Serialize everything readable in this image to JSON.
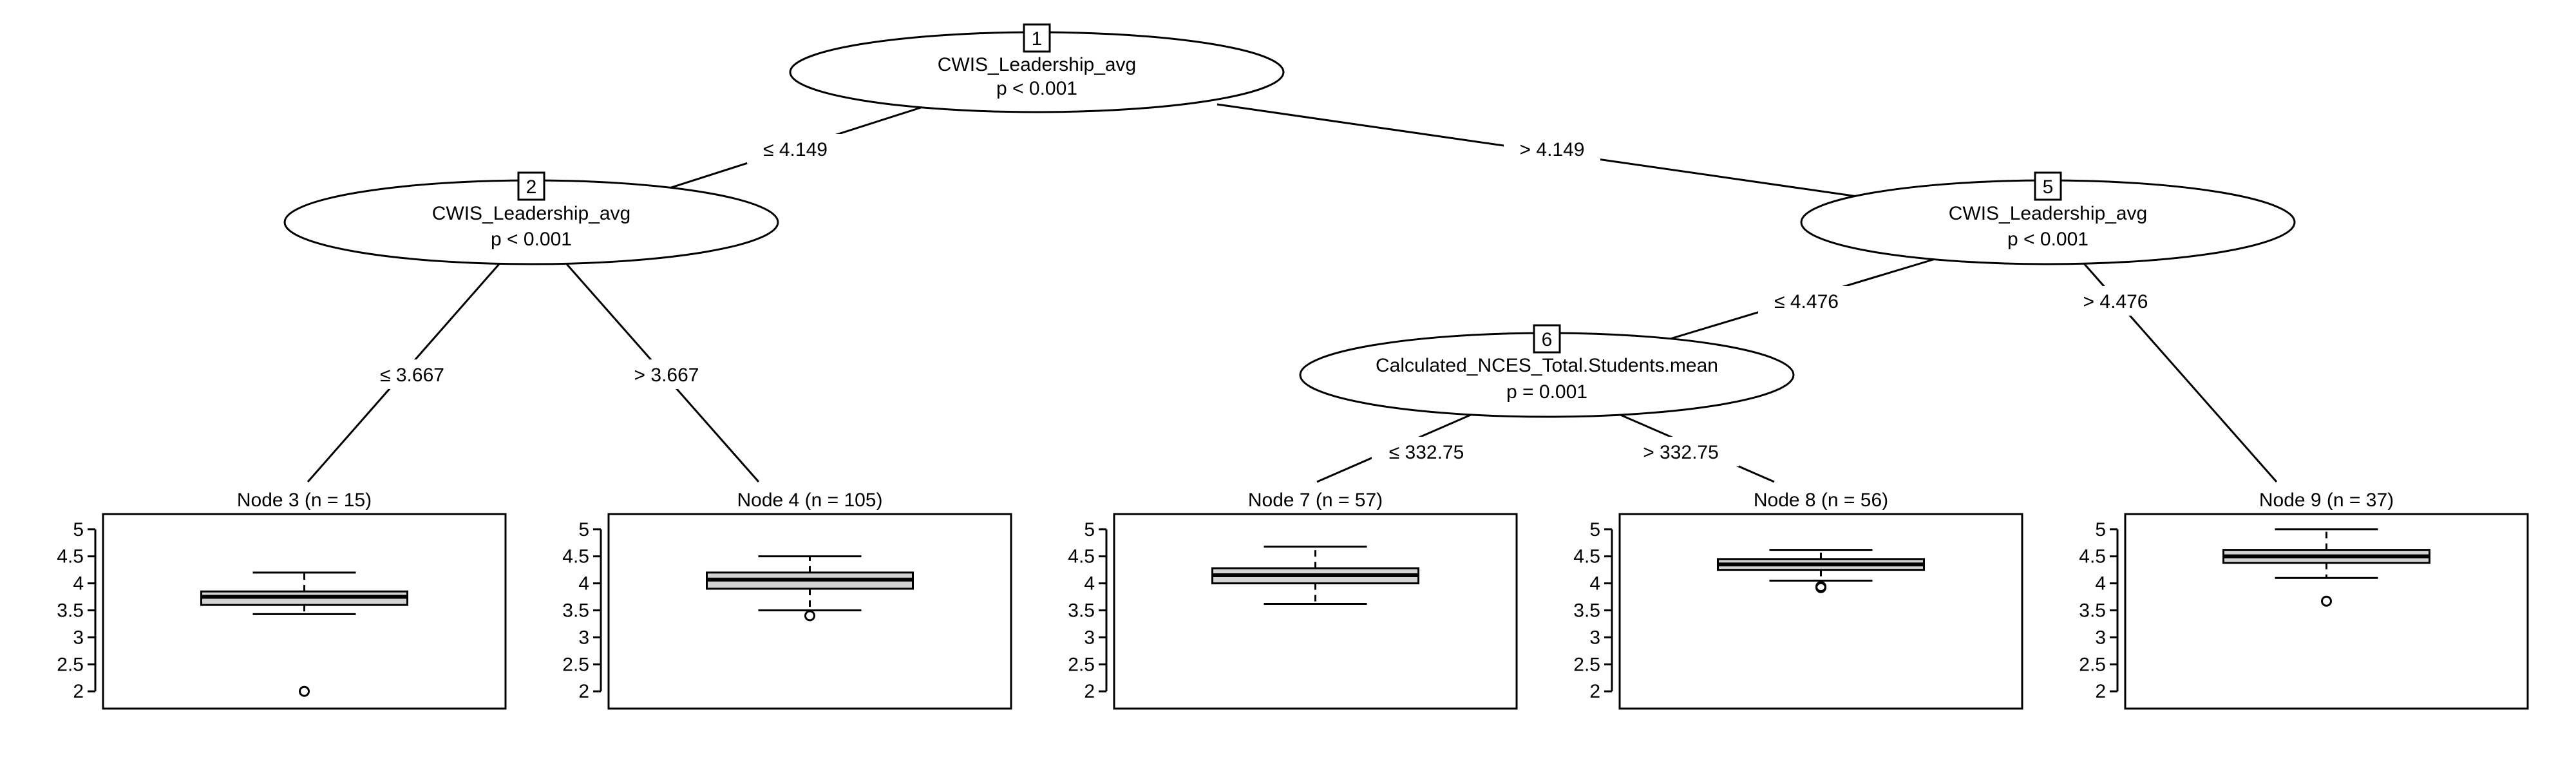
{
  "colors": {
    "box_fill": "#d3d3d3",
    "line": "#000000",
    "background": "#ffffff"
  },
  "inner_nodes": [
    {
      "id": "1",
      "variable": "CWIS_Leadership_avg",
      "p_value": "p < 0.001"
    },
    {
      "id": "2",
      "variable": "CWIS_Leadership_avg",
      "p_value": "p < 0.001"
    },
    {
      "id": "5",
      "variable": "CWIS_Leadership_avg",
      "p_value": "p < 0.001"
    },
    {
      "id": "6",
      "variable": "Calculated_NCES_Total.Students.mean",
      "p_value": "p = 0.001"
    }
  ],
  "edges": [
    {
      "from": "1",
      "to": "2",
      "label": "≤ 4.149"
    },
    {
      "from": "1",
      "to": "5",
      "label": "> 4.149"
    },
    {
      "from": "2",
      "to": "3",
      "label": "≤ 3.667"
    },
    {
      "from": "2",
      "to": "4",
      "label": "> 3.667"
    },
    {
      "from": "5",
      "to": "6",
      "label": "≤ 4.476"
    },
    {
      "from": "5",
      "to": "9",
      "label": "> 4.476"
    },
    {
      "from": "6",
      "to": "7",
      "label": "≤ 332.75"
    },
    {
      "from": "6",
      "to": "8",
      "label": "> 332.75"
    }
  ],
  "chart_data": {
    "type": "boxplot",
    "ylim": [
      1.8,
      5.2
    ],
    "y_ticks": [
      "5",
      "4.5",
      "4",
      "3.5",
      "3",
      "2.5",
      "2"
    ],
    "y_tick_values": [
      5,
      4.5,
      4,
      3.5,
      3,
      2.5,
      2
    ],
    "panels": [
      {
        "node": "3",
        "title": "Node 3 (n = 15)",
        "whisker_low": 3.43,
        "q1": 3.6,
        "median": 3.75,
        "q3": 3.85,
        "whisker_high": 4.2,
        "outliers": [
          2.0
        ]
      },
      {
        "node": "4",
        "title": "Node 4 (n = 105)",
        "whisker_low": 3.5,
        "q1": 3.9,
        "median": 4.07,
        "q3": 4.2,
        "whisker_high": 4.5,
        "outliers": [
          3.4
        ]
      },
      {
        "node": "7",
        "title": "Node 7 (n = 57)",
        "whisker_low": 3.62,
        "q1": 4.0,
        "median": 4.15,
        "q3": 4.28,
        "whisker_high": 4.68,
        "outliers": []
      },
      {
        "node": "8",
        "title": "Node 8 (n = 56)",
        "whisker_low": 4.05,
        "q1": 4.25,
        "median": 4.35,
        "q3": 4.45,
        "whisker_high": 4.62,
        "outliers": [
          3.92,
          3.93,
          3.94
        ]
      },
      {
        "node": "9",
        "title": "Node 9 (n = 37)",
        "whisker_low": 4.1,
        "q1": 4.38,
        "median": 4.5,
        "q3": 4.62,
        "whisker_high": 5.0,
        "outliers": [
          3.67
        ]
      }
    ]
  }
}
